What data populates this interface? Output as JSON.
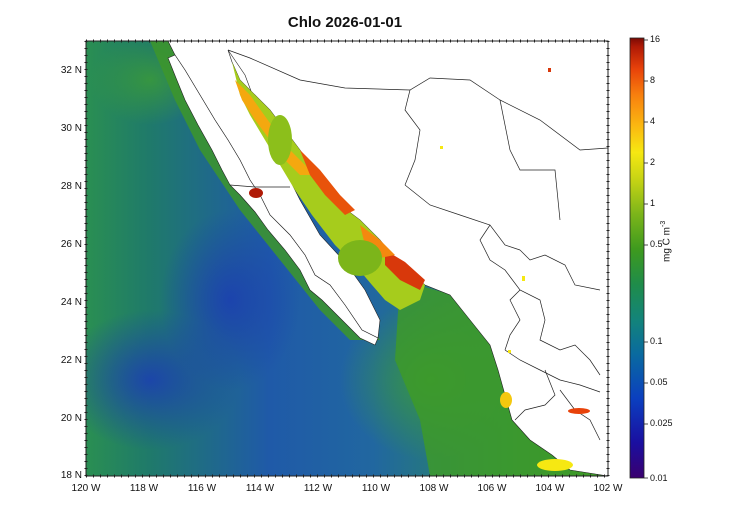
{
  "title": "Chlo 2026-01-01",
  "map": {
    "lon_range": [
      -120,
      -102
    ],
    "lat_range": [
      18,
      33
    ],
    "y_ticks": [
      "32 N",
      "30 N",
      "28 N",
      "26 N",
      "24 N",
      "22 N",
      "20 N",
      "18 N"
    ],
    "x_ticks": [
      "120 W",
      "118 W",
      "116 W",
      "114 W",
      "112 W",
      "110 W",
      "108 W",
      "106 W",
      "104 W",
      "102 W"
    ]
  },
  "colorbar": {
    "units_prefix": "mg C m",
    "units_exp": "-3",
    "scale": "log",
    "range": [
      0.01,
      16
    ],
    "labels": [
      "16",
      "8",
      "4",
      "2",
      "1",
      "0.5",
      "0.1",
      "0.05",
      "0.025",
      "0.01"
    ],
    "colors": [
      "#3a006f",
      "#1a0fa0",
      "#0b3fbf",
      "#0a6aa0",
      "#13847a",
      "#1f8c4a",
      "#3e9a1e",
      "#7cb51a",
      "#c8d414",
      "#f6e812",
      "#fbb811",
      "#f8800e",
      "#e8420a",
      "#b01a06",
      "#7a0a04"
    ]
  },
  "colors": {
    "ocean_deep": "#1f5aa8",
    "ocean_mid": "#2d7a78",
    "coastal_green": "#3d962a",
    "gulf_yellow": "#a6cc1c",
    "bloom_orange": "#f4880f",
    "bloom_red": "#d8380b",
    "land": "#ffffff"
  }
}
